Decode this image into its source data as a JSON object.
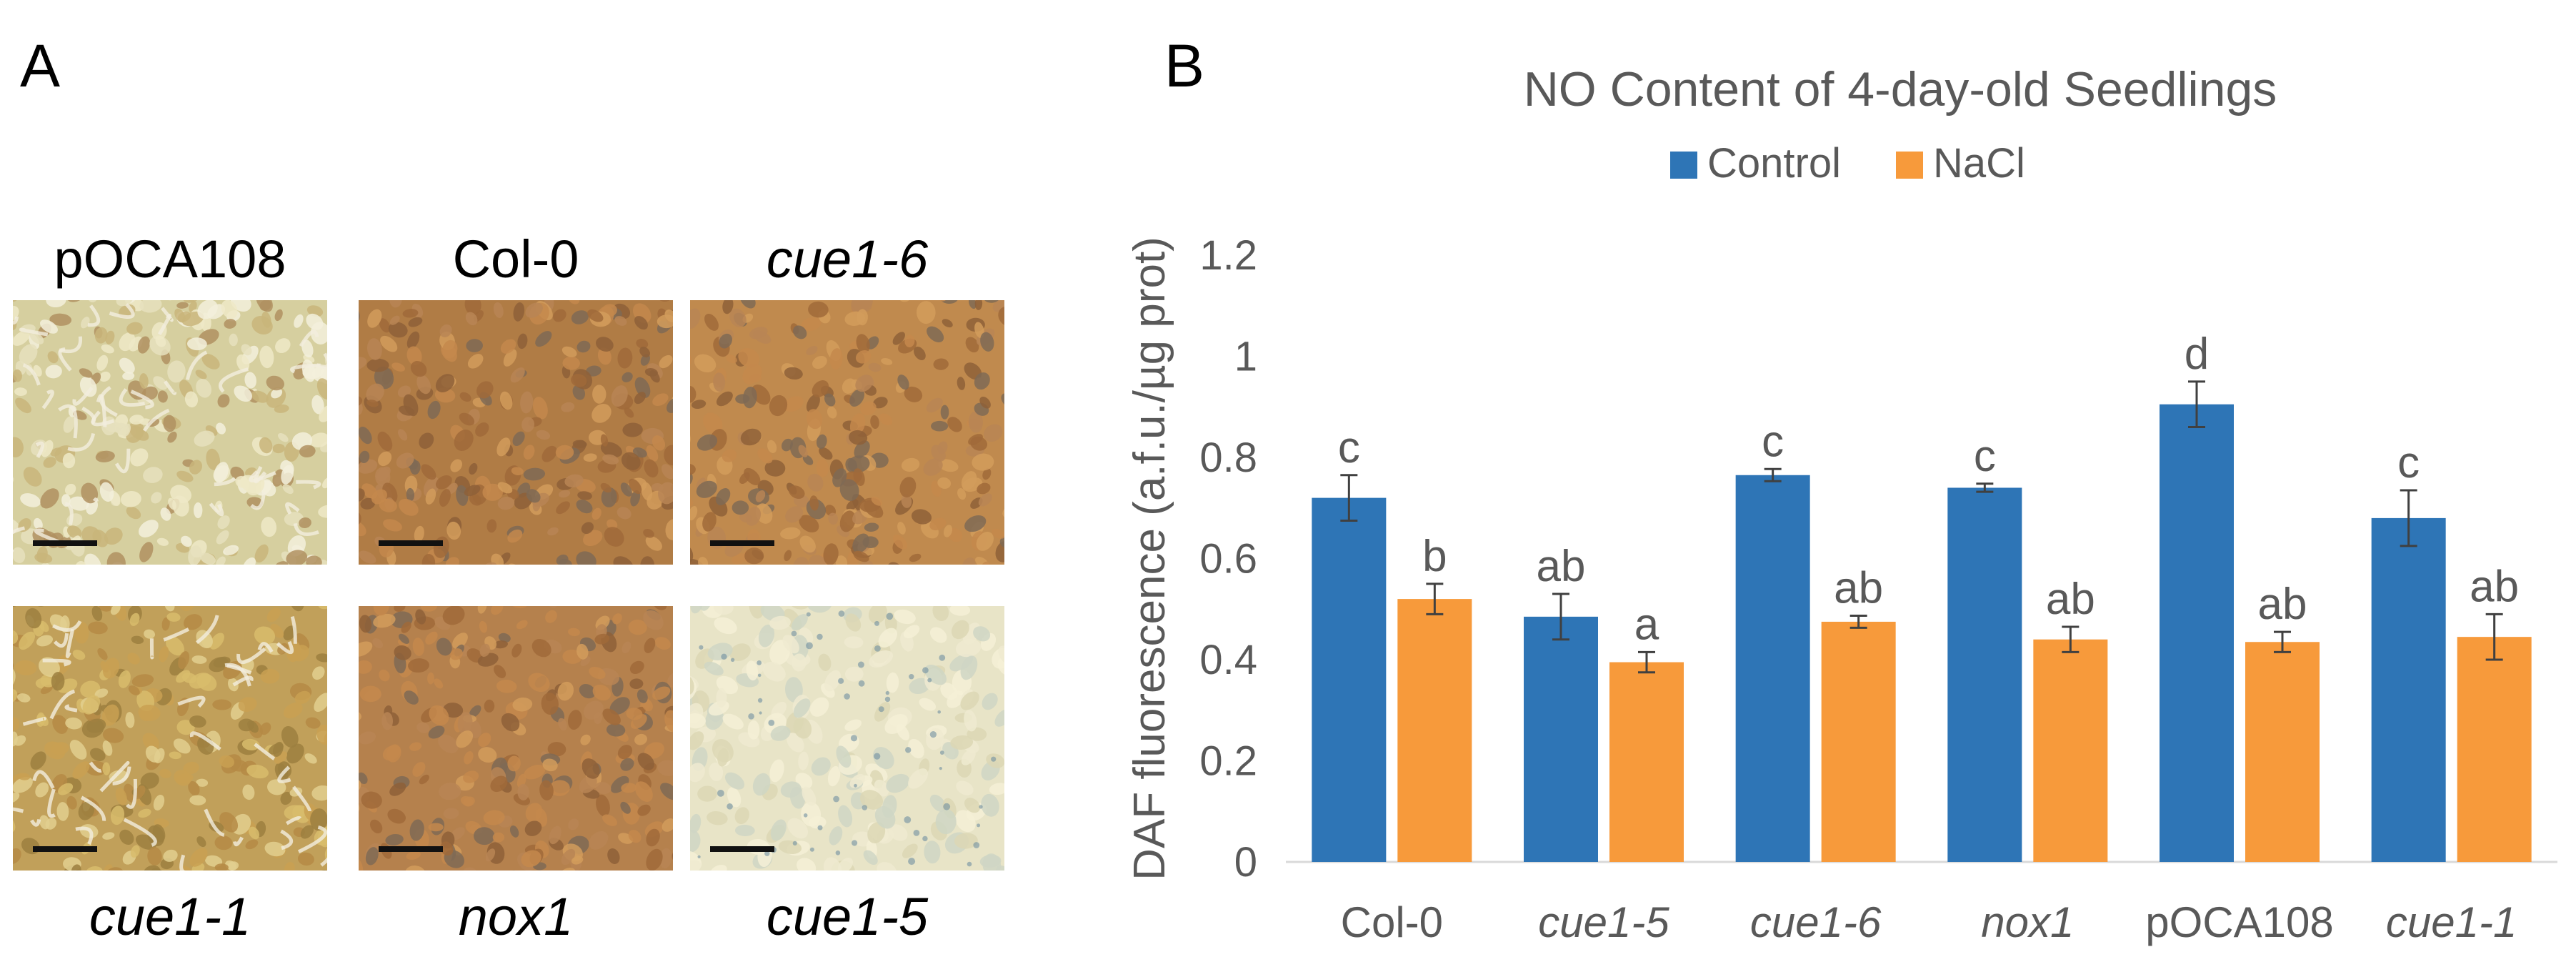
{
  "panel_a": {
    "letter": "A",
    "images": [
      {
        "label": "pOCA108",
        "italic": false,
        "style": "pale",
        "color": "#d6cf9f"
      },
      {
        "label": "Col-0",
        "italic": false,
        "style": "brown",
        "color": "#b07c45"
      },
      {
        "label": "cue1-6",
        "italic": true,
        "style": "brown",
        "color": "#c08a4e"
      },
      {
        "label": "cue1-1",
        "italic": true,
        "style": "mixed",
        "color": "#c1a05a"
      },
      {
        "label": "nox1",
        "italic": true,
        "style": "brown",
        "color": "#b5814d"
      },
      {
        "label": "cue1-5",
        "italic": true,
        "style": "seeds",
        "color": "#e8e4c7"
      }
    ]
  },
  "panel_b": {
    "letter": "B"
  },
  "chart_data": {
    "type": "bar",
    "title": "NO Content of 4-day-old Seedlings",
    "xlabel": "",
    "ylabel": "DAF fluorescence (a.f.u./µg prot)",
    "ylim": [
      0,
      1.2
    ],
    "yticks": [
      "0",
      "0.2",
      "0.4",
      "0.6",
      "0.8",
      "1",
      "1.2"
    ],
    "legend_position": "top-center",
    "grid": false,
    "categories": [
      "Col-0",
      "cue1-5",
      "cue1-6",
      "nox1",
      "pOCA108",
      "cue1-1"
    ],
    "category_italic": [
      false,
      true,
      true,
      true,
      false,
      true
    ],
    "series": [
      {
        "name": "Control",
        "color": "#2e75b6",
        "values": [
          0.72,
          0.485,
          0.765,
          0.74,
          0.905,
          0.68
        ],
        "errors": [
          0.045,
          0.045,
          0.012,
          0.008,
          0.045,
          0.055
        ],
        "labels": [
          "c",
          "ab",
          "c",
          "c",
          "d",
          "c"
        ]
      },
      {
        "name": "NaCl",
        "color": "#f79a3b",
        "values": [
          0.52,
          0.395,
          0.475,
          0.44,
          0.435,
          0.445
        ],
        "errors": [
          0.03,
          0.02,
          0.012,
          0.025,
          0.02,
          0.045
        ],
        "labels": [
          "b",
          "a",
          "ab",
          "ab",
          "ab",
          "ab"
        ]
      }
    ]
  }
}
